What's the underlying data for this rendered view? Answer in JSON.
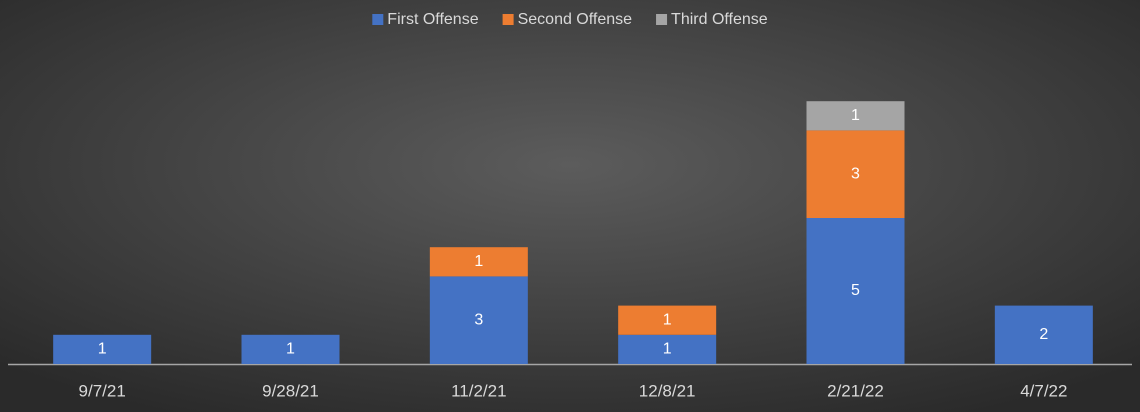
{
  "chart_data": {
    "type": "stacked_bar",
    "categories": [
      "9/7/21",
      "9/28/21",
      "11/2/21",
      "12/8/21",
      "2/21/22",
      "4/7/22"
    ],
    "series": [
      {
        "name": "First Offense",
        "color": "#4472c4",
        "values": [
          1,
          1,
          3,
          1,
          5,
          2
        ]
      },
      {
        "name": "Second Offense",
        "color": "#ed7d31",
        "values": [
          null,
          null,
          1,
          1,
          3,
          null
        ]
      },
      {
        "name": "Third Offense",
        "color": "#a5a5a5",
        "values": [
          null,
          null,
          null,
          null,
          1,
          null
        ]
      }
    ],
    "legend": "top",
    "grid": false
  }
}
